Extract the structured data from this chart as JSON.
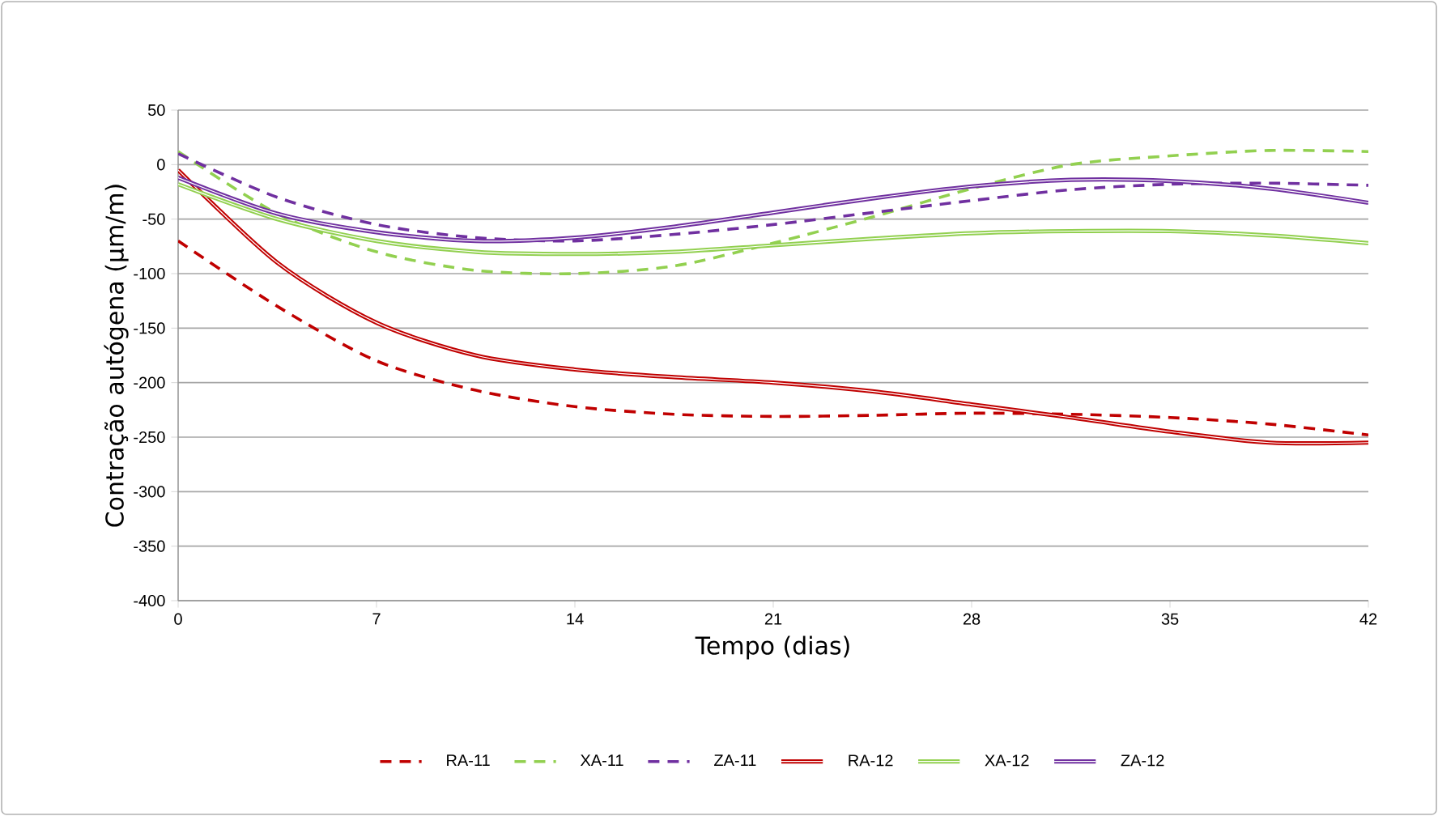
{
  "chart_data": {
    "type": "line",
    "xlabel": "Tempo (dias)",
    "ylabel": "Contração autógena (µm/m)",
    "x": [
      0,
      3.5,
      7,
      10.5,
      14,
      17.5,
      21,
      24.5,
      28,
      31.5,
      35,
      38.5,
      42
    ],
    "xlim": [
      0,
      42
    ],
    "xticks": [
      0,
      7,
      14,
      21,
      28,
      35,
      42
    ],
    "ylim": [
      -400,
      50
    ],
    "yticks": [
      -400,
      -350,
      -300,
      -250,
      -200,
      -150,
      -100,
      -50,
      0,
      50
    ],
    "grid": "y",
    "legend": "bottom",
    "marker": "none",
    "series": [
      {
        "name": "RA-11",
        "color": "#c00000",
        "line_style": "dashed",
        "values": [
          -70,
          -130,
          -180,
          -207,
          -222,
          -229,
          -231,
          -230,
          -228,
          -229,
          -232,
          -238,
          -248
        ]
      },
      {
        "name": "XA-11",
        "color": "#92d050",
        "line_style": "dashed",
        "values": [
          12,
          -45,
          -80,
          -97,
          -100,
          -93,
          -72,
          -48,
          -22,
          0,
          8,
          13,
          12
        ]
      },
      {
        "name": "ZA-11",
        "color": "#7030a0",
        "line_style": "dashed",
        "values": [
          10,
          -30,
          -55,
          -67,
          -70,
          -64,
          -55,
          -44,
          -33,
          -23,
          -18,
          -17,
          -19
        ]
      },
      {
        "name": "RA-12",
        "color": "#c00000",
        "line_style": "solid",
        "values": [
          -5,
          -90,
          -145,
          -175,
          -188,
          -195,
          -200,
          -208,
          -220,
          -232,
          -245,
          -255,
          -255
        ]
      },
      {
        "name": "XA-12",
        "color": "#92d050",
        "line_style": "solid",
        "values": [
          -18,
          -50,
          -70,
          -80,
          -82,
          -80,
          -74,
          -68,
          -63,
          -61,
          -61,
          -65,
          -72
        ]
      },
      {
        "name": "ZA-12",
        "color": "#7030a0",
        "line_style": "solid",
        "values": [
          -12,
          -45,
          -62,
          -70,
          -67,
          -57,
          -44,
          -31,
          -20,
          -14,
          -15,
          -22,
          -35
        ]
      }
    ]
  }
}
